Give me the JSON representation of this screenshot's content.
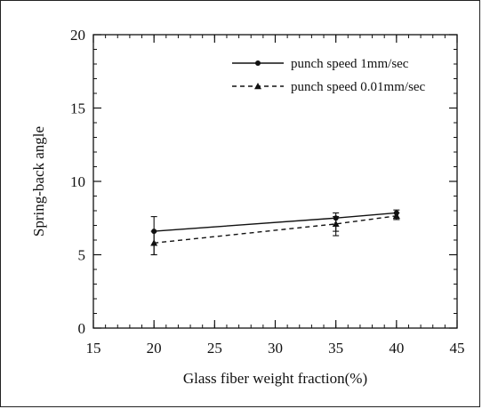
{
  "chart_data": {
    "type": "line",
    "title": "",
    "xlabel": "Glass fiber weight fraction(%)",
    "ylabel": "Spring-back angle",
    "xlim": [
      15,
      45
    ],
    "ylim": [
      0,
      20
    ],
    "xticks": [
      15,
      20,
      25,
      30,
      35,
      40,
      45
    ],
    "yticks": [
      0,
      5,
      10,
      15,
      20
    ],
    "x_minor_step": 1,
    "y_minor_step": 1,
    "grid": false,
    "legend_position": "top-right",
    "series": [
      {
        "name": "punch speed 1mm/sec",
        "line_style": "solid",
        "marker": "circle",
        "x": [
          20,
          35,
          40
        ],
        "y": [
          6.6,
          7.5,
          7.85
        ],
        "err_low": [
          1.6,
          0.9,
          0.45
        ],
        "err_high": [
          1.0,
          0.35,
          0.2
        ]
      },
      {
        "name": "punch speed 0.01mm/sec",
        "line_style": "dashed",
        "marker": "triangle",
        "x": [
          20,
          35,
          40
        ],
        "y": [
          5.8,
          7.1,
          7.65
        ],
        "err_low": [
          0.8,
          0.8,
          0.25
        ],
        "err_high": [
          0.8,
          0.5,
          0.2
        ]
      }
    ]
  }
}
